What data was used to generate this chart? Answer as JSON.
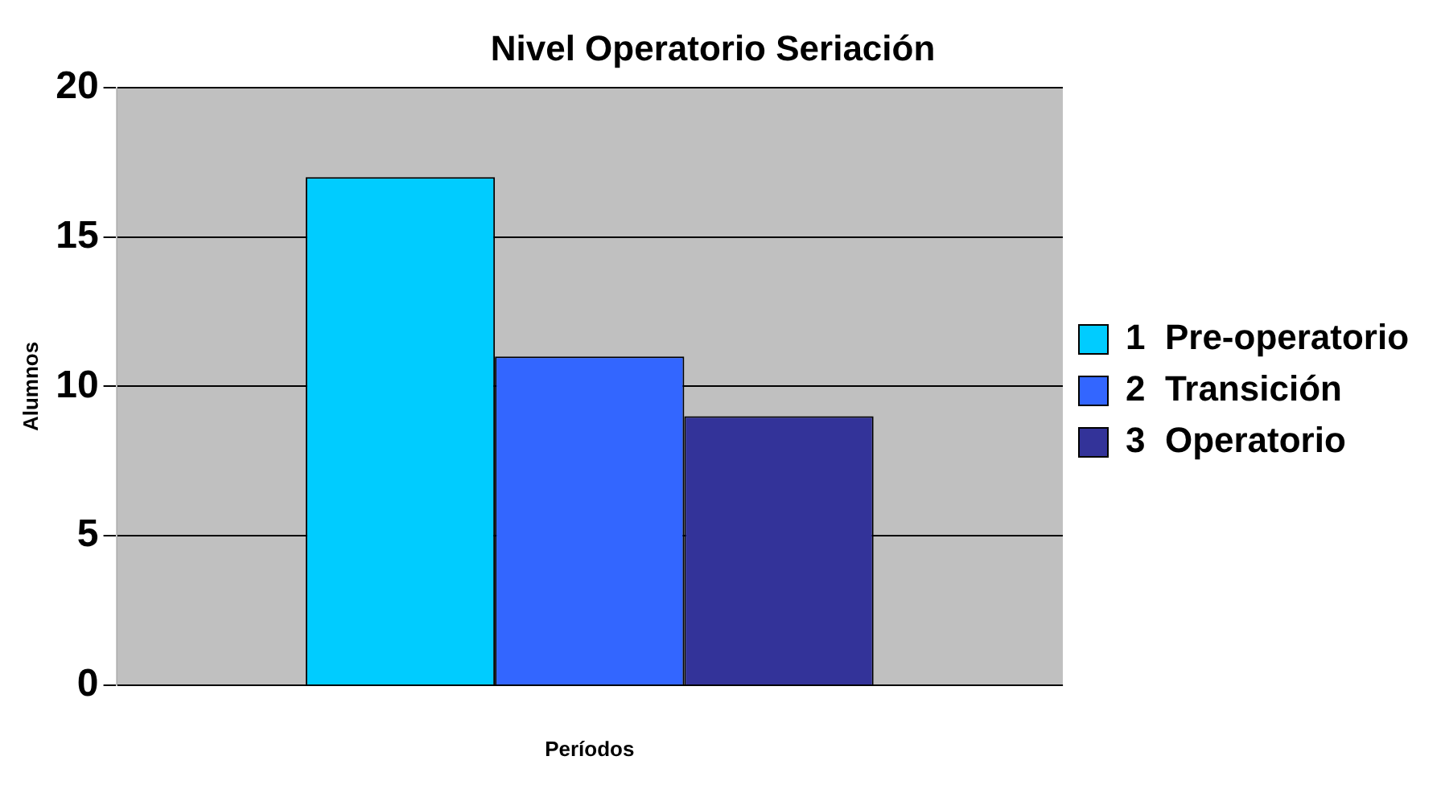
{
  "chart_data": {
    "type": "bar",
    "title": "Nivel Operatorio Seriación",
    "xlabel": "Períodos",
    "ylabel": "Alumnos",
    "categories": [
      null
    ],
    "series": [
      {
        "name": "1  Pre-operatorio",
        "color": "#00ccff",
        "values": [
          17
        ]
      },
      {
        "name": "2  Transición",
        "color": "#3366ff",
        "values": [
          11
        ]
      },
      {
        "name": "3  Operatorio",
        "color": "#333399",
        "values": [
          9
        ]
      }
    ],
    "ylim": [
      0,
      20
    ],
    "yticks": [
      0,
      5,
      10,
      15,
      20
    ],
    "grid": "y",
    "legend": "right"
  }
}
